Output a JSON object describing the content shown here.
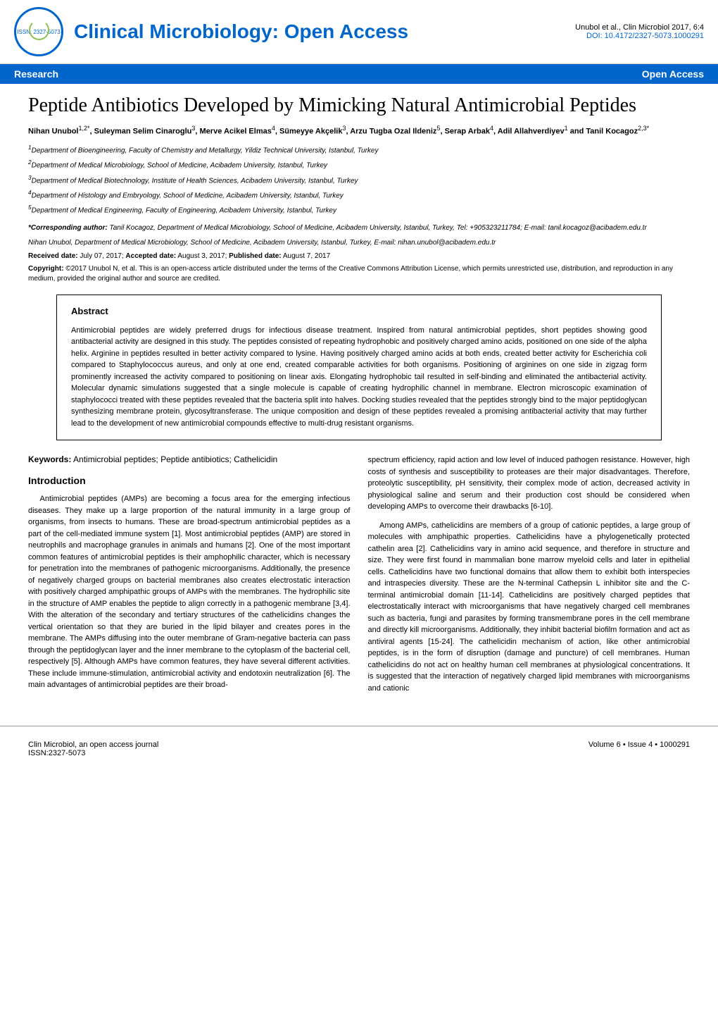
{
  "header": {
    "logo_text": "ISSN: 2327-5073",
    "journal_title": "Clinical Microbiology: Open Access",
    "citation": "Unubol et al., Clin Microbiol 2017, 6:4",
    "doi": "DOI: 10.4172/2327-5073.1000291"
  },
  "section_bar": {
    "left": "Research",
    "right": "Open Access"
  },
  "article": {
    "title": "Peptide Antibiotics Developed by Mimicking Natural Antimicrobial Peptides",
    "authors_html": "Nihan Unubol<sup>1,2*</sup>, Suleyman Selim Cinaroglu<sup>3</sup>, Merve Acikel Elmas<sup>4</sup>, Sümeyye Akçelik<sup>3</sup>, Arzu Tugba Ozal Ildeniz<sup>5</sup>, Serap Arbak<sup>4</sup>, Adil Allahverdiyev<sup>1</sup> and Tanil Kocagoz<sup>2,3*</sup>",
    "affiliations": [
      "1Department of Bioengineering, Faculty of Chemistry and Metallurgy, Yildiz Technical University, Istanbul, Turkey",
      "2Department of Medical Microbiology, School of Medicine, Acibadem University, Istanbul, Turkey",
      "3Department of Medical Biotechnology, Institute of Health Sciences, Acibadem University, Istanbul, Turkey",
      "4Department of Histology and Embryology, School of Medicine, Acibadem University, Istanbul, Turkey",
      "5Department of Medical Engineering, Faculty of Engineering, Acibadem University, Istanbul, Turkey"
    ],
    "corresponding_label": "*Corresponding author:",
    "corresponding_text": " Tanil Kocagoz, Department of Medical Microbiology, School of Medicine, Acibadem University, Istanbul, Turkey, Tel: +905323211784; E-mail: tanil.kocagoz@acibadem.edu.tr",
    "coauthor_line": "Nihan Unubol, Department of Medical Microbiology, School of Medicine, Acibadem University, Istanbul, Turkey, E-mail: nihan.unubol@acibadem.edu.tr",
    "dates": {
      "received_label": "Received date:",
      "received": " July 07, 2017; ",
      "accepted_label": "Accepted date:",
      "accepted": " August 3, 2017; ",
      "published_label": "Published date:",
      "published": " August 7, 2017"
    },
    "copyright_label": "Copyright:",
    "copyright_text": " ©2017 Unubol N, et al. This is an open-access article distributed under the terms of the Creative Commons Attribution License, which permits unrestricted use, distribution, and reproduction in any medium, provided the original author and source are credited."
  },
  "abstract": {
    "heading": "Abstract",
    "text": "Antimicrobial peptides are widely preferred drugs for infectious disease treatment. Inspired from natural antimicrobial peptides, short peptides showing good antibacterial activity are designed in this study. The peptides consisted of repeating hydrophobic and positively charged amino acids, positioned on one side of the alpha helix. Arginine in peptides resulted in better activity compared to lysine. Having positively charged amino acids at both ends, created better activity for Escherichia coli compared to Staphylococcus aureus, and only at one end, created comparable activities for both organisms. Positioning of arginines on one side in zigzag form prominently increased the activity compared to positioning on linear axis. Elongating hydrophobic tail resulted in self-binding and eliminated the antibacterial activity. Molecular dynamic simulations suggested that a single molecule is capable of creating hydrophilic channel in membrane. Electron microscopic examination of staphylococci treated with these peptides revealed that the bacteria split into halves. Docking studies revealed that the peptides strongly bind to the major peptidoglycan synthesizing membrane protein, glycosyltransferase. The unique composition and design of these peptides revealed a promising antibacterial activity that may further lead to the development of new antimicrobial compounds effective to multi-drug resistant organisms."
  },
  "keywords": {
    "label": "Keywords:",
    "text": " Antimicrobial peptides; Peptide antibiotics; Cathelicidin"
  },
  "introduction": {
    "heading": "Introduction",
    "col1": "Antimicrobial peptides (AMPs) are becoming a focus area for the emerging infectious diseases. They make up a large proportion of the natural immunity in a large group of organisms, from insects to humans. These are broad-spectrum antimicrobial peptides as a part of the cell-mediated immune system [1]. Most antimicrobial peptides (AMP) are stored in neutrophils and macrophage granules in animals and humans [2]. One of the most important common features of antimicrobial peptides is their amphophilic character, which is necessary for penetration into the membranes of pathogenic microorganisms. Additionally, the presence of negatively charged groups on bacterial membranes also creates electrostatic interaction with positively charged amphipathic groups of AMPs with the membranes. The hydrophilic site in the structure of AMP enables the peptide to align correctly in a pathogenic membrane [3,4]. With the alteration of the secondary and tertiary structures of the cathelicidins changes the vertical orientation so that they are buried in the lipid bilayer and creates pores in the membrane. The AMPs diffusing into the outer membrane of Gram-negative bacteria can pass through the peptidoglycan layer and the inner membrane to the cytoplasm of the bacterial cell, respectively [5]. Although AMPs have common features, they have several different activities. These include immune-stimulation, antimicrobial activity and endotoxin neutralization [6]. The main advantages of antimicrobial peptides are their broad-",
    "col2_p1": "spectrum efficiency, rapid action and low level of induced pathogen resistance. However, high costs of synthesis and susceptibility to proteases are their major disadvantages. Therefore, proteolytic susceptibility, pH sensitivity, their complex mode of action, decreased activity in physiological saline and serum and their production cost should be considered when developing AMPs to overcome their drawbacks [6-10].",
    "col2_p2": "Among AMPs, cathelicidins are members of a group of cationic peptides, a large group of molecules with amphipathic properties. Cathelicidins have a phylogenetically protected cathelin area [2]. Cathelicidins vary in amino acid sequence, and therefore in structure and size. They were first found in mammalian bone marrow myeloid cells and later in epithelial cells. Cathelicidins have two functional domains that allow them to exhibit both interspecies and intraspecies diversity. These are the N-terminal Cathepsin L inhibitor site and the C-terminal antimicrobial domain [11-14]. Cathelicidins are positively charged peptides that electrostatically interact with microorganisms that have negatively charged cell membranes such as bacteria, fungi and parasites by forming transmembrane pores in the cell membrane and directly kill microorganisms. Additionally, they inhibit bacterial biofilm formation and act as antiviral agents [15-24]. The cathelicidin mechanism of action, like other antimicrobial peptides, is in the form of disruption (damage and puncture) of cell membranes. Human cathelicidins do not act on healthy human cell membranes at physiological concentrations. It is suggested that the interaction of negatively charged lipid membranes with microorganisms and cationic"
  },
  "footer": {
    "left_line1": "Clin Microbiol, an open access journal",
    "left_line2": "ISSN:2327-5073",
    "right": "Volume 6 • Issue 4 • 1000291"
  },
  "colors": {
    "primary": "#0066cc",
    "text": "#000000",
    "background": "#ffffff"
  }
}
